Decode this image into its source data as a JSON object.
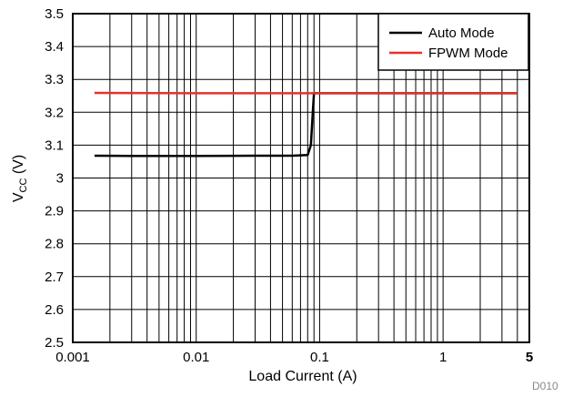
{
  "chart_data": {
    "type": "line",
    "xlabel": "Load Current (A)",
    "ylabel_main": "V",
    "ylabel_sub": "CC",
    "ylabel_unit": " (V)",
    "x_scale": "log",
    "xlim": [
      0.001,
      5
    ],
    "ylim": [
      2.5,
      3.5
    ],
    "grid": true,
    "x_ticks": [
      {
        "value": 0.001,
        "label": "0.001"
      },
      {
        "value": 0.01,
        "label": "0.01"
      },
      {
        "value": 0.1,
        "label": "0.1"
      },
      {
        "value": 1,
        "label": "1"
      },
      {
        "value": 5,
        "label": "5"
      }
    ],
    "y_ticks": [
      {
        "value": 2.5,
        "label": "2.5"
      },
      {
        "value": 2.6,
        "label": "2.6"
      },
      {
        "value": 2.7,
        "label": "2.7"
      },
      {
        "value": 2.8,
        "label": "2.8"
      },
      {
        "value": 2.9,
        "label": "2.9"
      },
      {
        "value": 3.0,
        "label": "3"
      },
      {
        "value": 3.1,
        "label": "3.1"
      },
      {
        "value": 3.2,
        "label": "3.2"
      },
      {
        "value": 3.3,
        "label": "3.3"
      },
      {
        "value": 3.4,
        "label": "3.4"
      },
      {
        "value": 3.5,
        "label": "3.5"
      }
    ],
    "legend_position": "top-right",
    "series": [
      {
        "name": "Auto Mode",
        "color": "#000000",
        "x": [
          0.0015,
          0.003,
          0.01,
          0.03,
          0.06,
          0.08,
          0.085,
          0.088,
          0.09,
          0.1,
          0.3,
          1,
          4
        ],
        "y": [
          3.068,
          3.067,
          3.067,
          3.068,
          3.068,
          3.07,
          3.1,
          3.2,
          3.258,
          3.258,
          3.258,
          3.258,
          3.258
        ]
      },
      {
        "name": "FPWM Mode",
        "color": "#e8312b",
        "x": [
          0.0015,
          0.01,
          0.1,
          1,
          4
        ],
        "y": [
          3.259,
          3.258,
          3.258,
          3.258,
          3.258
        ]
      }
    ],
    "figure_id": "D010"
  }
}
